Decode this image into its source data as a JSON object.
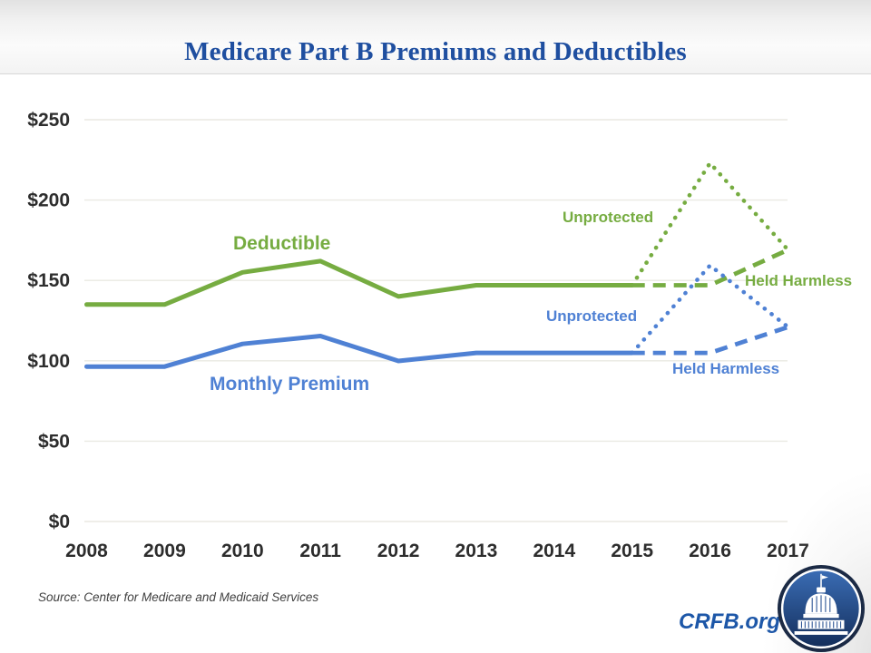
{
  "slide": {
    "title": "Medicare Part B Premiums and Deductibles"
  },
  "chart_data": {
    "type": "line",
    "title": "Medicare Part B Premiums and Deductibles",
    "xlabel": "",
    "ylabel": "",
    "x": [
      2008,
      2009,
      2010,
      2011,
      2012,
      2013,
      2014,
      2015,
      2016,
      2017
    ],
    "ylim": [
      0,
      250
    ],
    "y_ticks": [
      {
        "value": 0,
        "label": "$0"
      },
      {
        "value": 50,
        "label": "$50"
      },
      {
        "value": 100,
        "label": "$100"
      },
      {
        "value": 150,
        "label": "$150"
      },
      {
        "value": 200,
        "label": "$200"
      },
      {
        "value": 250,
        "label": "$250"
      }
    ],
    "grid": "horizontal",
    "legend": "none",
    "series": [
      {
        "name": "Deductible (actual)",
        "style": "solid",
        "color": "deductible_green",
        "x": [
          2008,
          2009,
          2010,
          2011,
          2012,
          2013,
          2014,
          2015
        ],
        "values": [
          135,
          135,
          155,
          162,
          140,
          147,
          147,
          147
        ]
      },
      {
        "name": "Deductible - Unprotected (projected)",
        "style": "dotted",
        "color": "deductible_green",
        "x": [
          2015,
          2016,
          2017
        ],
        "values": [
          147,
          223,
          169
        ]
      },
      {
        "name": "Deductible - Held Harmless (projected)",
        "style": "dashed",
        "color": "deductible_green",
        "x": [
          2015,
          2016,
          2017
        ],
        "values": [
          147,
          147,
          169
        ]
      },
      {
        "name": "Monthly Premium (actual)",
        "style": "solid",
        "color": "premium_blue",
        "x": [
          2008,
          2009,
          2010,
          2011,
          2012,
          2013,
          2014,
          2015
        ],
        "values": [
          96.4,
          96.4,
          110.5,
          115.4,
          99.9,
          104.9,
          104.9,
          104.9
        ]
      },
      {
        "name": "Monthly Premium - Unprotected (projected)",
        "style": "dotted",
        "color": "premium_blue",
        "x": [
          2015,
          2016,
          2017
        ],
        "values": [
          104.9,
          159.3,
          121
        ]
      },
      {
        "name": "Monthly Premium - Held Harmless (projected)",
        "style": "dashed",
        "color": "premium_blue",
        "x": [
          2015,
          2016,
          2017
        ],
        "values": [
          104.9,
          104.9,
          121
        ]
      }
    ],
    "annotations": {
      "deductible": {
        "text": "Deductible",
        "color": "deductible_green"
      },
      "monthly_premium": {
        "text": "Monthly Premium",
        "color": "premium_blue"
      },
      "unprotected_deductible": {
        "text": "Unprotected",
        "color": "deductible_green"
      },
      "unprotected_premium": {
        "text": "Unprotected",
        "color": "premium_blue"
      },
      "held_harmless_deductible": {
        "text": "Held Harmless",
        "color": "deductible_green"
      },
      "held_harmless_premium": {
        "text": "Held Harmless",
        "color": "premium_blue"
      }
    }
  },
  "colors": {
    "deductible_green": "#76AC41",
    "premium_blue": "#4F81D4",
    "title_blue": "#1F4FA0",
    "brand_blue": "#1D57A8",
    "gridline": "#EAE9E2",
    "axis_text": "#2D2D2D",
    "logo_navy": "#1B2A45",
    "logo_blue": "#24518F"
  },
  "footer": {
    "source": "Source: Center for Medicare and Medicaid Services",
    "brand": "CRFB.org",
    "logo_icon": "capitol-dome-logo"
  }
}
